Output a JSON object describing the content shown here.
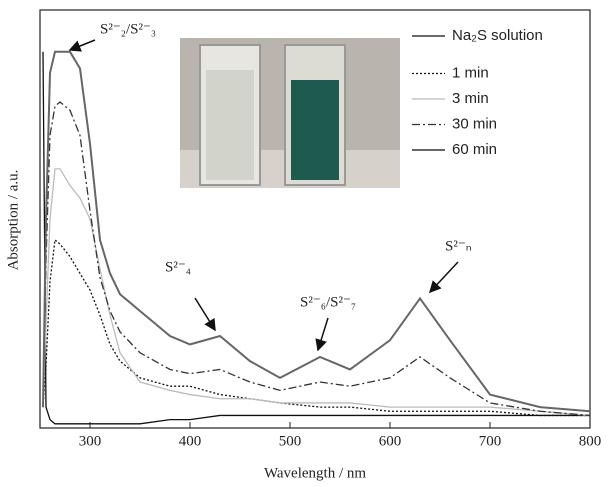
{
  "chart_data": {
    "type": "line",
    "x_label": "Wavelength / nm",
    "y_label": "Absorption / a.u.",
    "xlim": [
      250,
      800
    ],
    "xticks": [
      300,
      400,
      500,
      600,
      700,
      800
    ],
    "ylim": [
      0,
      1
    ],
    "x": [
      253,
      256,
      260,
      265,
      270,
      280,
      290,
      300,
      310,
      320,
      330,
      350,
      380,
      400,
      430,
      460,
      490,
      530,
      560,
      600,
      630,
      660,
      700,
      750,
      800
    ],
    "series": [
      {
        "name": "Na₂S solution",
        "color": "#111111",
        "style": "solid",
        "values": [
          0.9,
          0.05,
          0.02,
          0.01,
          0.01,
          0.01,
          0.01,
          0.01,
          0.01,
          0.01,
          0.01,
          0.01,
          0.02,
          0.02,
          0.03,
          0.03,
          0.03,
          0.03,
          0.03,
          0.03,
          0.03,
          0.03,
          0.03,
          0.03,
          0.03
        ]
      },
      {
        "name": "1 min",
        "color": "#111111",
        "style": "dotted",
        "values": [
          0.05,
          0.15,
          0.35,
          0.45,
          0.44,
          0.41,
          0.37,
          0.33,
          0.27,
          0.2,
          0.16,
          0.12,
          0.1,
          0.1,
          0.08,
          0.07,
          0.06,
          0.05,
          0.05,
          0.04,
          0.04,
          0.04,
          0.04,
          0.03,
          0.03
        ]
      },
      {
        "name": "3 min",
        "color": "#bbbbbb",
        "style": "solid",
        "values": [
          0.05,
          0.25,
          0.5,
          0.62,
          0.62,
          0.58,
          0.55,
          0.5,
          0.38,
          0.27,
          0.18,
          0.11,
          0.09,
          0.08,
          0.07,
          0.07,
          0.06,
          0.06,
          0.06,
          0.05,
          0.05,
          0.05,
          0.05,
          0.04,
          0.03
        ]
      },
      {
        "name": "30 min",
        "color": "#333333",
        "style": "dashdot",
        "values": [
          0.05,
          0.4,
          0.7,
          0.77,
          0.78,
          0.76,
          0.7,
          0.52,
          0.36,
          0.28,
          0.23,
          0.18,
          0.14,
          0.13,
          0.14,
          0.11,
          0.09,
          0.11,
          0.1,
          0.12,
          0.17,
          0.12,
          0.06,
          0.04,
          0.03
        ]
      },
      {
        "name": "60 min",
        "color": "#666666",
        "style": "solid",
        "values": [
          0.05,
          0.5,
          0.85,
          0.9,
          0.9,
          0.9,
          0.86,
          0.68,
          0.45,
          0.37,
          0.32,
          0.28,
          0.22,
          0.2,
          0.22,
          0.16,
          0.12,
          0.17,
          0.14,
          0.21,
          0.31,
          0.21,
          0.08,
          0.05,
          0.04
        ]
      }
    ],
    "annotations": [
      "S²⁻₂/S²⁻₃",
      "S²⁻₄",
      "S²⁻₆/S²⁻₇",
      "S²⁻ₙ"
    ],
    "legend": "upper right"
  }
}
